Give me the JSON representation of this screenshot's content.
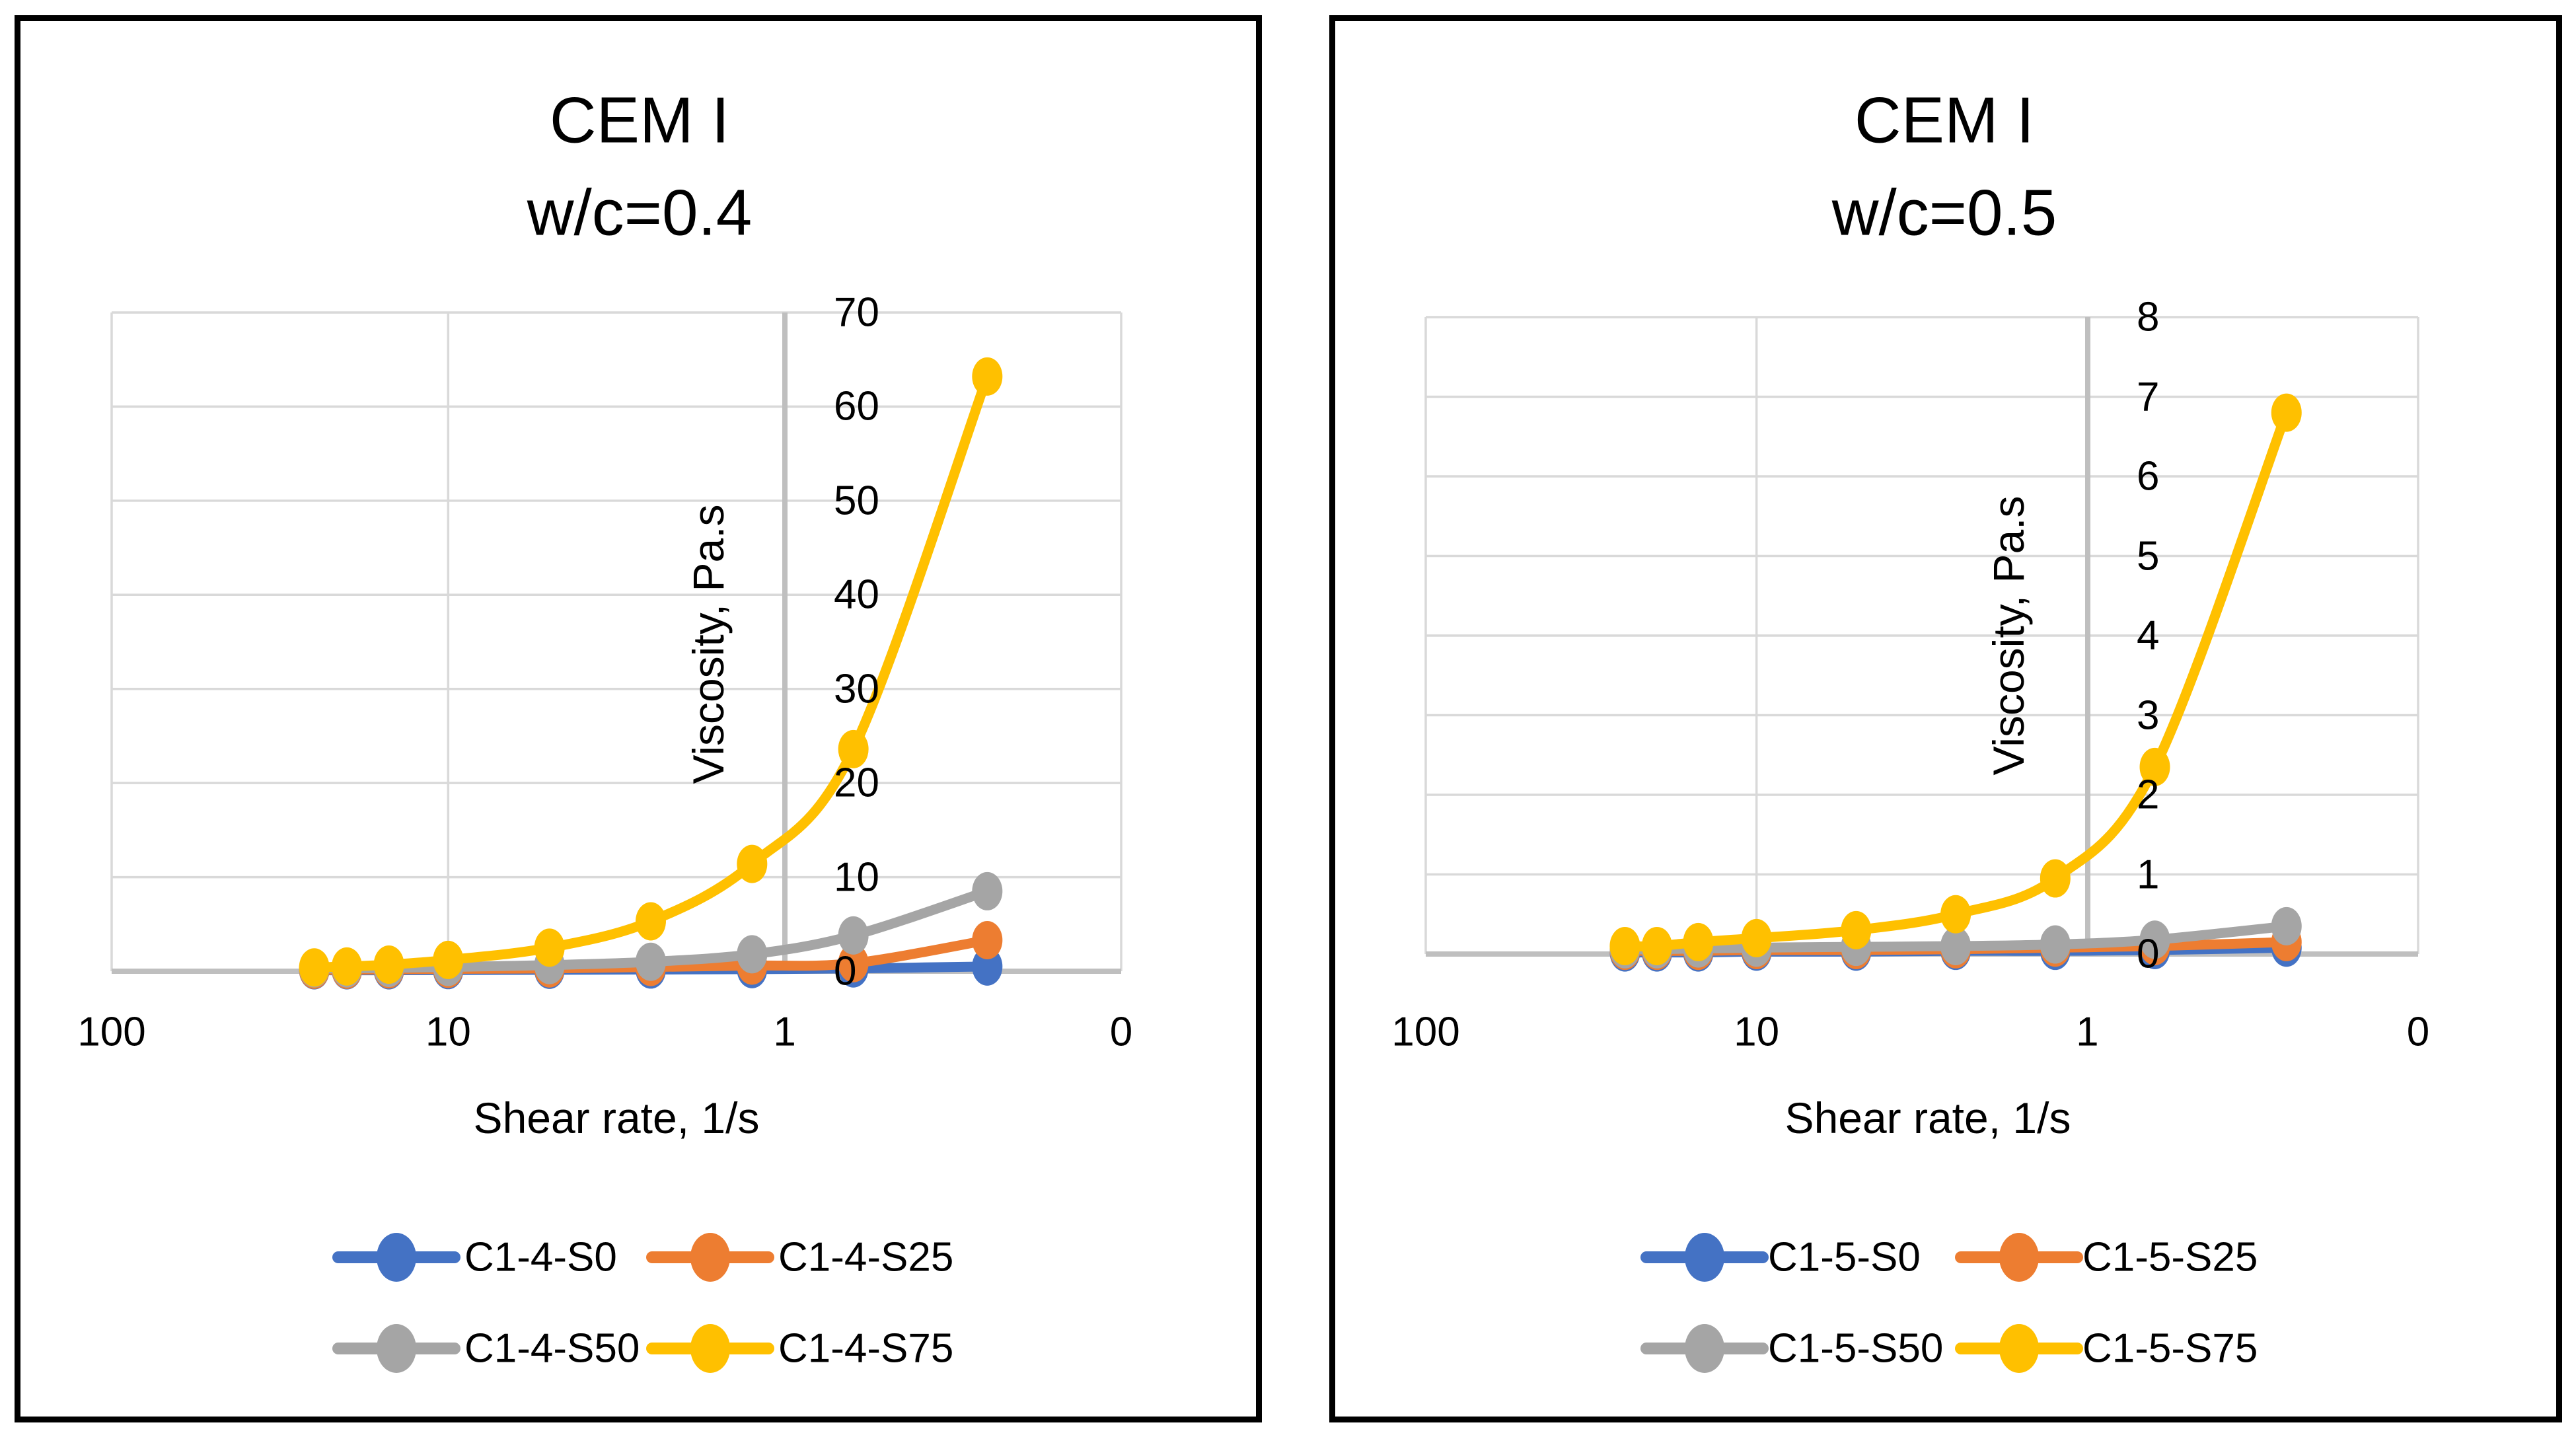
{
  "page": {
    "background": "#FFFFFF",
    "panel_border_color": "#000000"
  },
  "chart_data": [
    {
      "type": "line",
      "title": "CEM I",
      "subtitle": "w/c=0.4",
      "xlabel": "Shear rate, 1/s",
      "ylabel": "Viscosity, Pa.s",
      "x_axis": {
        "scale": "log",
        "reversed": true,
        "range": [
          100,
          0.1
        ],
        "tick_values": [
          100,
          10,
          1,
          0.1
        ],
        "tick_labels": [
          "100",
          "10",
          "1",
          "0"
        ]
      },
      "y_axis": {
        "range": [
          0,
          70
        ],
        "step": 10,
        "tick_labels": [
          "0",
          "10",
          "20",
          "30",
          "40",
          "50",
          "60",
          "70"
        ]
      },
      "grid": true,
      "gridline_color": "#D9D9D9",
      "axis_color": "#BFBFBF",
      "x": [
        25,
        20,
        15,
        10,
        5,
        2.5,
        1.25,
        0.625,
        0.25
      ],
      "series": [
        {
          "name": "C1-4-S0",
          "color": "#4472C4",
          "values": [
            0.1,
            0.1,
            0.1,
            0.12,
            0.15,
            0.18,
            0.22,
            0.3,
            0.5
          ]
        },
        {
          "name": "C1-4-S25",
          "color": "#ED7D31",
          "values": [
            0.15,
            0.15,
            0.2,
            0.25,
            0.3,
            0.45,
            0.6,
            0.85,
            3.3
          ]
        },
        {
          "name": "C1-4-S50",
          "color": "#A5A5A5",
          "values": [
            0.3,
            0.3,
            0.35,
            0.45,
            0.65,
            1.0,
            1.8,
            3.8,
            8.5
          ]
        },
        {
          "name": "C1-4-S75",
          "color": "#FFC000",
          "values": [
            0.4,
            0.5,
            0.7,
            1.2,
            2.5,
            5.3,
            11.4,
            23.6,
            63.2
          ]
        }
      ],
      "legend_position": "bottom",
      "legend_rows": [
        [
          "C1-4-S0",
          "C1-4-S25"
        ],
        [
          "C1-4-S50",
          "C1-4-S75"
        ]
      ]
    },
    {
      "type": "line",
      "title": "CEM I",
      "subtitle": "w/c=0.5",
      "xlabel": "Shear rate, 1/s",
      "ylabel": "Viscosity, Pa.s",
      "x_axis": {
        "scale": "log",
        "reversed": true,
        "range": [
          100,
          0.1
        ],
        "tick_values": [
          100,
          10,
          1,
          0.1
        ],
        "tick_labels": [
          "100",
          "10",
          "1",
          "0"
        ]
      },
      "y_axis": {
        "range": [
          0,
          8
        ],
        "step": 1,
        "tick_labels": [
          "0",
          "1",
          "2",
          "3",
          "4",
          "5",
          "6",
          "7",
          "8"
        ]
      },
      "grid": true,
      "gridline_color": "#D9D9D9",
      "axis_color": "#BFBFBF",
      "x": [
        25,
        20,
        15,
        10,
        5,
        2.5,
        1.25,
        0.625,
        0.25
      ],
      "series": [
        {
          "name": "C1-5-S0",
          "color": "#4472C4",
          "values": [
            0.02,
            0.02,
            0.02,
            0.03,
            0.03,
            0.04,
            0.04,
            0.05,
            0.08
          ]
        },
        {
          "name": "C1-5-S25",
          "color": "#ED7D31",
          "values": [
            0.04,
            0.04,
            0.04,
            0.05,
            0.05,
            0.06,
            0.08,
            0.1,
            0.15
          ]
        },
        {
          "name": "C1-5-S50",
          "color": "#A5A5A5",
          "values": [
            0.06,
            0.06,
            0.07,
            0.08,
            0.09,
            0.1,
            0.12,
            0.18,
            0.35
          ]
        },
        {
          "name": "C1-5-S75",
          "color": "#FFC000",
          "values": [
            0.1,
            0.1,
            0.15,
            0.2,
            0.3,
            0.5,
            0.95,
            2.35,
            6.8
          ]
        }
      ],
      "legend_position": "bottom",
      "legend_rows": [
        [
          "C1-5-S0",
          "C1-5-S25"
        ],
        [
          "C1-5-S50",
          "C1-5-S75"
        ]
      ]
    }
  ]
}
